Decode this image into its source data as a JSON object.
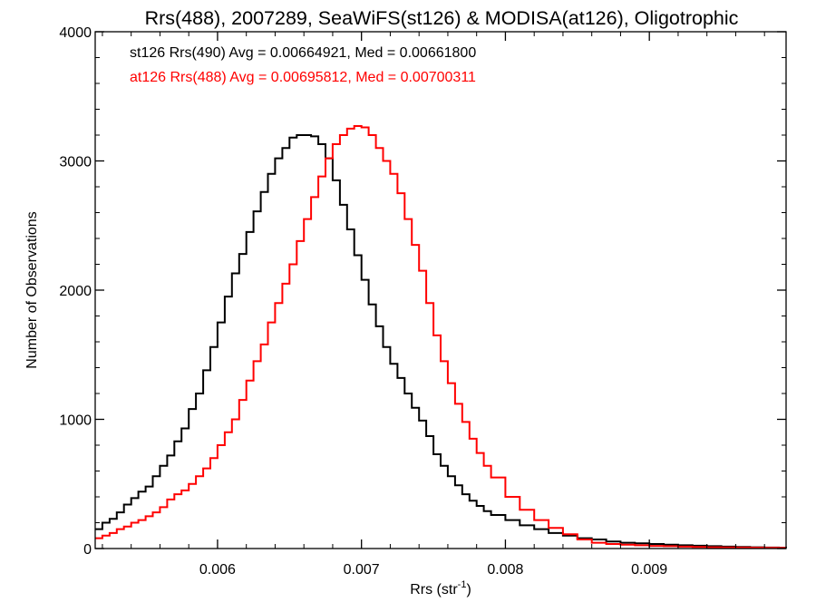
{
  "chart_data": {
    "type": "line",
    "title": "Rrs(488), 2007289, SeaWiFS(st126) & MODISA(at126), Oligotrophic",
    "xlabel": "Rrs (str",
    "xlabel_sup": "-1",
    "xlabel_close": ")",
    "ylabel": "Number of Observations",
    "xlim": [
      0.00515,
      0.00995
    ],
    "ylim": [
      0,
      4000
    ],
    "x_ticks": [
      0.006,
      0.007,
      0.008,
      0.009
    ],
    "x_tick_labels": [
      "0.006",
      "0.007",
      "0.008",
      "0.009"
    ],
    "y_ticks": [
      0,
      1000,
      2000,
      3000,
      4000
    ],
    "y_tick_labels": [
      "0",
      "1000",
      "2000",
      "3000",
      "4000"
    ],
    "grid": false,
    "legend_placement": "top-left",
    "series": [
      {
        "name": "st126 Rrs(490) Avg = 0.00664921, Med = 0.00661800",
        "color": "#000000",
        "x": [
          0.00515,
          0.0052,
          0.00525,
          0.0053,
          0.00535,
          0.0054,
          0.00545,
          0.0055,
          0.00555,
          0.0056,
          0.00565,
          0.0057,
          0.00575,
          0.0058,
          0.00585,
          0.0059,
          0.00595,
          0.006,
          0.00605,
          0.0061,
          0.00615,
          0.0062,
          0.00625,
          0.0063,
          0.00635,
          0.0064,
          0.00645,
          0.0065,
          0.00655,
          0.0066,
          0.00665,
          0.0067,
          0.00675,
          0.0068,
          0.00685,
          0.0069,
          0.00695,
          0.007,
          0.00705,
          0.0071,
          0.00715,
          0.0072,
          0.00725,
          0.0073,
          0.00735,
          0.0074,
          0.00745,
          0.0075,
          0.00755,
          0.0076,
          0.00765,
          0.0077,
          0.00775,
          0.0078,
          0.00785,
          0.0079,
          0.008,
          0.0081,
          0.0082,
          0.0083,
          0.0084,
          0.0085,
          0.0086,
          0.0087,
          0.0088,
          0.0089,
          0.009,
          0.0091,
          0.0092,
          0.0093,
          0.0094,
          0.0095,
          0.0096,
          0.0097,
          0.0098,
          0.0099,
          0.00995
        ],
        "y": [
          150,
          200,
          230,
          280,
          340,
          390,
          440,
          480,
          560,
          640,
          720,
          830,
          930,
          1080,
          1200,
          1380,
          1560,
          1750,
          1950,
          2130,
          2280,
          2450,
          2610,
          2760,
          2900,
          3020,
          3100,
          3180,
          3200,
          3200,
          3190,
          3130,
          3020,
          2850,
          2660,
          2470,
          2270,
          2080,
          1890,
          1720,
          1560,
          1430,
          1320,
          1200,
          1090,
          990,
          870,
          730,
          640,
          560,
          490,
          420,
          370,
          330,
          290,
          260,
          220,
          180,
          150,
          120,
          100,
          80,
          70,
          55,
          45,
          40,
          35,
          30,
          25,
          22,
          18,
          15,
          12,
          10,
          8,
          6,
          5
        ]
      },
      {
        "name": "at126 Rrs(488) Avg = 0.00695812, Med = 0.00700311",
        "color": "#ff0000",
        "x": [
          0.00515,
          0.0052,
          0.00525,
          0.0053,
          0.00535,
          0.0054,
          0.00545,
          0.0055,
          0.00555,
          0.0056,
          0.00565,
          0.0057,
          0.00575,
          0.0058,
          0.00585,
          0.0059,
          0.00595,
          0.006,
          0.00605,
          0.0061,
          0.00615,
          0.0062,
          0.00625,
          0.0063,
          0.00635,
          0.0064,
          0.00645,
          0.0065,
          0.00655,
          0.0066,
          0.00665,
          0.0067,
          0.00675,
          0.0068,
          0.00685,
          0.0069,
          0.00695,
          0.007,
          0.00705,
          0.0071,
          0.00715,
          0.0072,
          0.00725,
          0.0073,
          0.00735,
          0.0074,
          0.00745,
          0.0075,
          0.00755,
          0.0076,
          0.00765,
          0.0077,
          0.00775,
          0.0078,
          0.00785,
          0.0079,
          0.008,
          0.0081,
          0.0082,
          0.0083,
          0.0084,
          0.0085,
          0.0086,
          0.0087,
          0.0088,
          0.0089,
          0.009,
          0.0091,
          0.0092,
          0.0093,
          0.0094,
          0.0095,
          0.0096,
          0.0097,
          0.0098,
          0.0099,
          0.00995
        ],
        "y": [
          80,
          100,
          120,
          150,
          170,
          200,
          220,
          250,
          280,
          320,
          380,
          420,
          450,
          500,
          560,
          620,
          700,
          800,
          900,
          1000,
          1150,
          1300,
          1450,
          1580,
          1750,
          1900,
          2050,
          2200,
          2380,
          2550,
          2720,
          2880,
          3020,
          3130,
          3200,
          3250,
          3270,
          3260,
          3200,
          3100,
          3000,
          2900,
          2750,
          2550,
          2350,
          2150,
          1900,
          1650,
          1450,
          1280,
          1120,
          980,
          850,
          740,
          640,
          550,
          400,
          300,
          220,
          160,
          110,
          70,
          45,
          35,
          30,
          25,
          20,
          18,
          15,
          12,
          10,
          9,
          8,
          7,
          6,
          5,
          5
        ]
      }
    ]
  }
}
